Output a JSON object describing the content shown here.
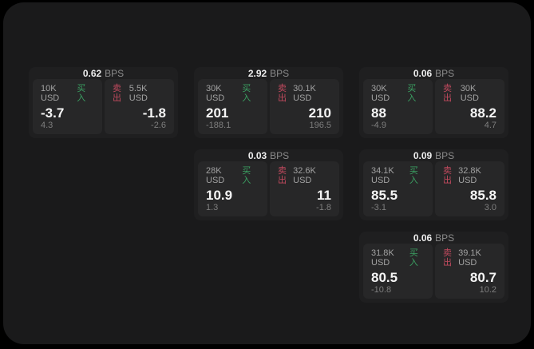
{
  "labels": {
    "buy": "买入",
    "sell": "卖出",
    "bps_unit": "BPS"
  },
  "colors": {
    "page_background": "#000000",
    "window_background": "#1a1a1b",
    "card_background": "#1f1f20",
    "panel_background": "#272728",
    "buy_accent": "#3ba062",
    "sell_accent": "#c14a5e"
  },
  "cards": [
    {
      "bps": "0.62",
      "col": 0,
      "row": 0,
      "buy": {
        "amount": "10K USD",
        "value": "-3.7",
        "sub": "4.3"
      },
      "sell": {
        "amount": "5.5K USD",
        "value": "-1.8",
        "sub": "-2.6"
      }
    },
    {
      "bps": "2.92",
      "col": 1,
      "row": 0,
      "buy": {
        "amount": "30K USD",
        "value": "201",
        "sub": "-188.1"
      },
      "sell": {
        "amount": "30.1K USD",
        "value": "210",
        "sub": "196.5"
      }
    },
    {
      "bps": "0.06",
      "col": 2,
      "row": 0,
      "buy": {
        "amount": "30K USD",
        "value": "88",
        "sub": "-4.9"
      },
      "sell": {
        "amount": "30K USD",
        "value": "88.2",
        "sub": "4.7"
      }
    },
    {
      "bps": "0.03",
      "col": 1,
      "row": 1,
      "buy": {
        "amount": "28K USD",
        "value": "10.9",
        "sub": "1.3"
      },
      "sell": {
        "amount": "32.6K USD",
        "value": "11",
        "sub": "-1.8"
      }
    },
    {
      "bps": "0.09",
      "col": 2,
      "row": 1,
      "buy": {
        "amount": "34.1K USD",
        "value": "85.5",
        "sub": "-3.1"
      },
      "sell": {
        "amount": "32.8K USD",
        "value": "85.8",
        "sub": "3.0"
      }
    },
    {
      "bps": "0.06",
      "col": 2,
      "row": 2,
      "buy": {
        "amount": "31.8K USD",
        "value": "80.5",
        "sub": "-10.8"
      },
      "sell": {
        "amount": "39.1K USD",
        "value": "80.7",
        "sub": "10.2"
      }
    }
  ]
}
